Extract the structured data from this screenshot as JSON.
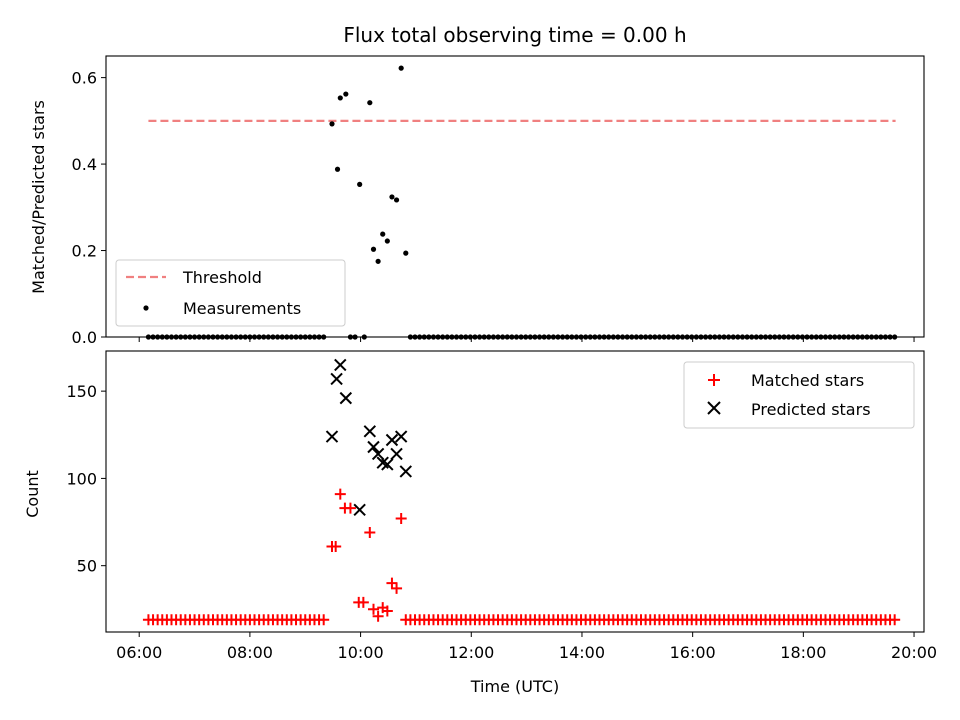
{
  "chart_data": [
    {
      "type": "scatter",
      "title": "Flux total observing time = 0.00 h",
      "xlabel": "",
      "ylabel": "Matched/Predicted stars",
      "xlim": [
        "06:00",
        "20:00"
      ],
      "ylim": [
        0,
        0.65
      ],
      "yticks": [
        "0.0",
        "0.2",
        "0.4",
        "0.6"
      ],
      "xticks": [
        "06:00",
        "08:00",
        "10:00",
        "12:00",
        "14:00",
        "16:00",
        "18:00",
        "20:00"
      ],
      "grid": false,
      "legend_position": "lower-left",
      "threshold": {
        "name": "Threshold",
        "value": 0.5,
        "x_start": "06:10",
        "x_end": "19:40",
        "color": "#f08080",
        "style": "dashed"
      },
      "series": [
        {
          "name": "Measurements",
          "color": "#000000",
          "marker": "dot",
          "points": [
            [
              "09:29",
              0.493
            ],
            [
              "09:35",
              0.388
            ],
            [
              "09:38",
              0.553
            ],
            [
              "09:44",
              0.562
            ],
            [
              "09:59",
              0.353
            ],
            [
              "10:10",
              0.542
            ],
            [
              "10:14",
              0.203
            ],
            [
              "10:19",
              0.175
            ],
            [
              "10:24",
              0.238
            ],
            [
              "10:29",
              0.222
            ],
            [
              "10:34",
              0.324
            ],
            [
              "10:39",
              0.317
            ],
            [
              "10:44",
              0.622
            ],
            [
              "10:49",
              0.194
            ]
          ],
          "zero_runs": [
            {
              "start": "06:10",
              "end": "09:24",
              "step_min": 5,
              "value": 0
            },
            {
              "start": "09:49",
              "end": "09:54",
              "step_min": 5,
              "value": 0
            },
            {
              "start": "10:04",
              "end": "10:04",
              "step_min": 5,
              "value": 0
            },
            {
              "start": "10:54",
              "end": "19:40",
              "step_min": 5,
              "value": 0
            }
          ]
        }
      ]
    },
    {
      "type": "scatter",
      "title": "",
      "xlabel": "Time (UTC)",
      "ylabel": "Count",
      "xlim": [
        "06:00",
        "20:00"
      ],
      "ylim": [
        12,
        173
      ],
      "yticks": [
        "50",
        "100",
        "150"
      ],
      "xticks": [
        "06:00",
        "08:00",
        "10:00",
        "12:00",
        "14:00",
        "16:00",
        "18:00",
        "20:00"
      ],
      "grid": false,
      "legend_position": "top-right",
      "series": [
        {
          "name": "Matched stars",
          "color": "#ff0000",
          "marker": "plus",
          "points": [
            [
              "09:29",
              61
            ],
            [
              "09:33",
              61
            ],
            [
              "09:38",
              91
            ],
            [
              "09:43",
              83
            ],
            [
              "09:49",
              83
            ],
            [
              "09:58",
              29
            ],
            [
              "10:03",
              29
            ],
            [
              "10:10",
              69
            ],
            [
              "10:14",
              25
            ],
            [
              "10:19",
              21
            ],
            [
              "10:24",
              26
            ],
            [
              "10:29",
              24
            ],
            [
              "10:34",
              40
            ],
            [
              "10:39",
              37
            ],
            [
              "10:44",
              77
            ]
          ],
          "baseline_runs": [
            {
              "start": "06:10",
              "end": "09:24",
              "step_min": 5,
              "value": 19
            },
            {
              "start": "10:49",
              "end": "19:40",
              "step_min": 5,
              "value": 19
            }
          ]
        },
        {
          "name": "Predicted stars",
          "color": "#000000",
          "marker": "x",
          "points": [
            [
              "09:29",
              124
            ],
            [
              "09:34",
              157
            ],
            [
              "09:38",
              165
            ],
            [
              "09:44",
              146
            ],
            [
              "09:59",
              82
            ],
            [
              "10:10",
              127
            ],
            [
              "10:14",
              118
            ],
            [
              "10:19",
              114
            ],
            [
              "10:24",
              109
            ],
            [
              "10:29",
              108
            ],
            [
              "10:34",
              122
            ],
            [
              "10:39",
              114
            ],
            [
              "10:44",
              124
            ],
            [
              "10:49",
              104
            ]
          ]
        }
      ]
    }
  ]
}
